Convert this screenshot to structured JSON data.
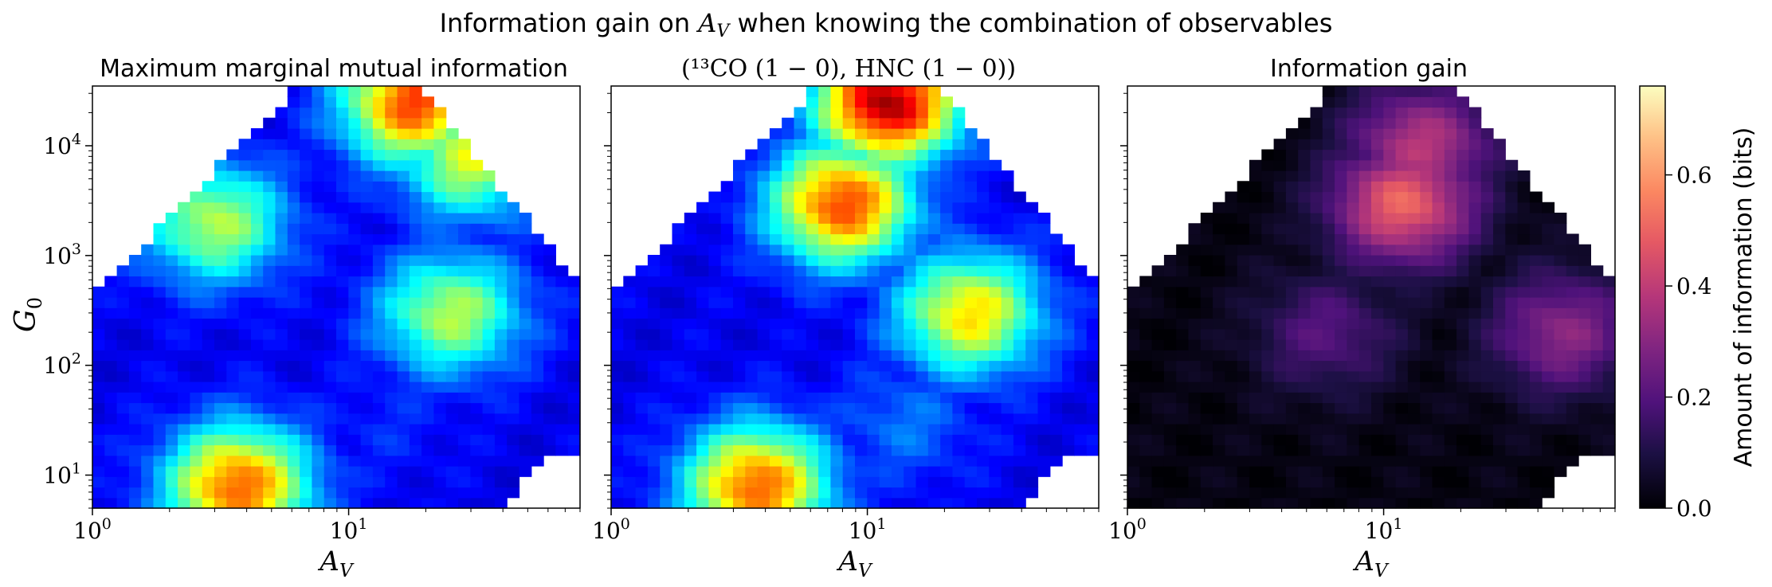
{
  "figure": {
    "suptitle": "Information gain on A_V when knowing the combination of observables"
  },
  "panels": [
    {
      "title": "Maximum marginal mutual information",
      "xlabel": "A_V",
      "ylabel": "G_0"
    },
    {
      "title": "(¹³CO (1 − 0), HNC (1 − 0))",
      "xlabel": "A_V",
      "ylabel": ""
    },
    {
      "title": "Information gain",
      "xlabel": "A_V",
      "ylabel": ""
    }
  ],
  "colorbar": {
    "label": "Amount of information (bits)",
    "ticks": [
      "0.0",
      "0.2",
      "0.4",
      "0.6"
    ],
    "tick_values": [
      0.0,
      0.2,
      0.4,
      0.6
    ],
    "range": [
      0.0,
      0.76
    ],
    "colormap": "magma"
  },
  "chart_data": [
    {
      "type": "heatmap",
      "title": "Maximum marginal mutual information",
      "xlabel": "A_V",
      "ylabel": "G_0",
      "x_scale": "log",
      "y_scale": "log",
      "xlim": [
        1,
        80
      ],
      "ylim": [
        5,
        35000
      ],
      "x_ticks": [
        "10^0",
        "10^1"
      ],
      "y_ticks": [
        "10^1",
        "10^2",
        "10^3",
        "10^4"
      ],
      "colormap": "jet",
      "value_range": [
        0.0,
        0.76
      ],
      "features": [
        {
          "AV": 3.7,
          "G0": 8,
          "value": 0.6
        },
        {
          "AV": 3.0,
          "G0": 2000,
          "value": 0.42
        },
        {
          "AV": 18,
          "G0": 25000,
          "value": 0.62
        },
        {
          "AV": 30,
          "G0": 8000,
          "value": 0.45
        },
        {
          "AV": 25,
          "G0": 300,
          "value": 0.42
        },
        {
          "AV": 14,
          "G0": 30,
          "value": 0.12
        }
      ]
    },
    {
      "type": "heatmap",
      "title": "(¹³CO (1 − 0), HNC (1 − 0))",
      "xlabel": "A_V",
      "x_scale": "log",
      "y_scale": "log",
      "xlim": [
        1,
        80
      ],
      "ylim": [
        5,
        35000
      ],
      "x_ticks": [
        "10^0",
        "10^1"
      ],
      "colormap": "jet",
      "value_range": [
        0.0,
        0.76
      ],
      "features": [
        {
          "AV": 12,
          "G0": 25000,
          "value": 0.74
        },
        {
          "AV": 3.7,
          "G0": 8,
          "value": 0.6
        },
        {
          "AV": 8,
          "G0": 3000,
          "value": 0.62
        },
        {
          "AV": 25,
          "G0": 300,
          "value": 0.5
        },
        {
          "AV": 14,
          "G0": 30,
          "value": 0.18
        }
      ]
    },
    {
      "type": "heatmap",
      "title": "Information gain",
      "xlabel": "A_V",
      "x_scale": "log",
      "y_scale": "log",
      "xlim": [
        1,
        80
      ],
      "ylim": [
        5,
        35000
      ],
      "x_ticks": [
        "10^0",
        "10^1"
      ],
      "colormap": "magma",
      "value_range": [
        0.0,
        0.76
      ],
      "features": [
        {
          "AV": 12,
          "G0": 3000,
          "value": 0.5
        },
        {
          "AV": 14,
          "G0": 10000,
          "value": 0.38
        },
        {
          "AV": 50,
          "G0": 200,
          "value": 0.3
        },
        {
          "AV": 6,
          "G0": 200,
          "value": 0.2
        }
      ]
    }
  ]
}
